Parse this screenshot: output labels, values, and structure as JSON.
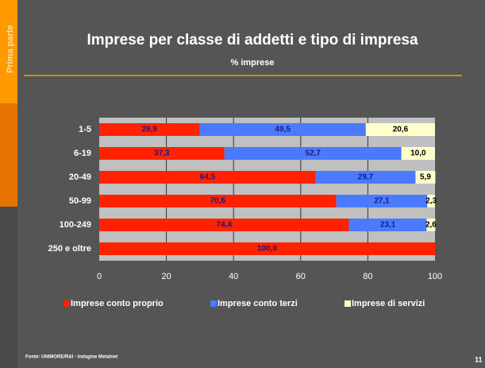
{
  "slide": {
    "sidebar": "Prima parte",
    "source": "Fonte: UNIMORE/R&I - Indagine Metalnet",
    "page_number": "11"
  },
  "chart_data": {
    "type": "stacked-bar-horizontal",
    "title": "Imprese per classe di addetti e tipo di impresa",
    "subtitle": "% imprese",
    "categories": [
      "1-5",
      "6-19",
      "20-49",
      "50-99",
      "100-249",
      "250 e oltre"
    ],
    "series": [
      {
        "name": "Imprese conto proprio",
        "color": "#ff2200",
        "values": [
          29.9,
          37.3,
          64.5,
          70.6,
          74.4,
          100.0
        ],
        "value_labels": [
          "29,9",
          "37,3",
          "64,5",
          "70,6",
          "74,4",
          "100,0"
        ]
      },
      {
        "name": "Imprese conto terzi",
        "color": "#4a7bff",
        "values": [
          49.5,
          52.7,
          29.7,
          27.1,
          23.1,
          null
        ],
        "value_labels": [
          "49,5",
          "52,7",
          "29,7",
          "27,1",
          "23,1",
          null
        ]
      },
      {
        "name": "Imprese di servizi",
        "color": "#ffffcc",
        "values": [
          20.6,
          10.0,
          5.9,
          2.3,
          2.6,
          null
        ],
        "value_labels": [
          "20,6",
          "10,0",
          "5,9",
          "2,3",
          "2,6",
          null
        ]
      }
    ],
    "xlim": [
      0,
      100
    ],
    "xticks": [
      0,
      20,
      40,
      60,
      80,
      100
    ],
    "grid": true,
    "legend": "bottom"
  }
}
